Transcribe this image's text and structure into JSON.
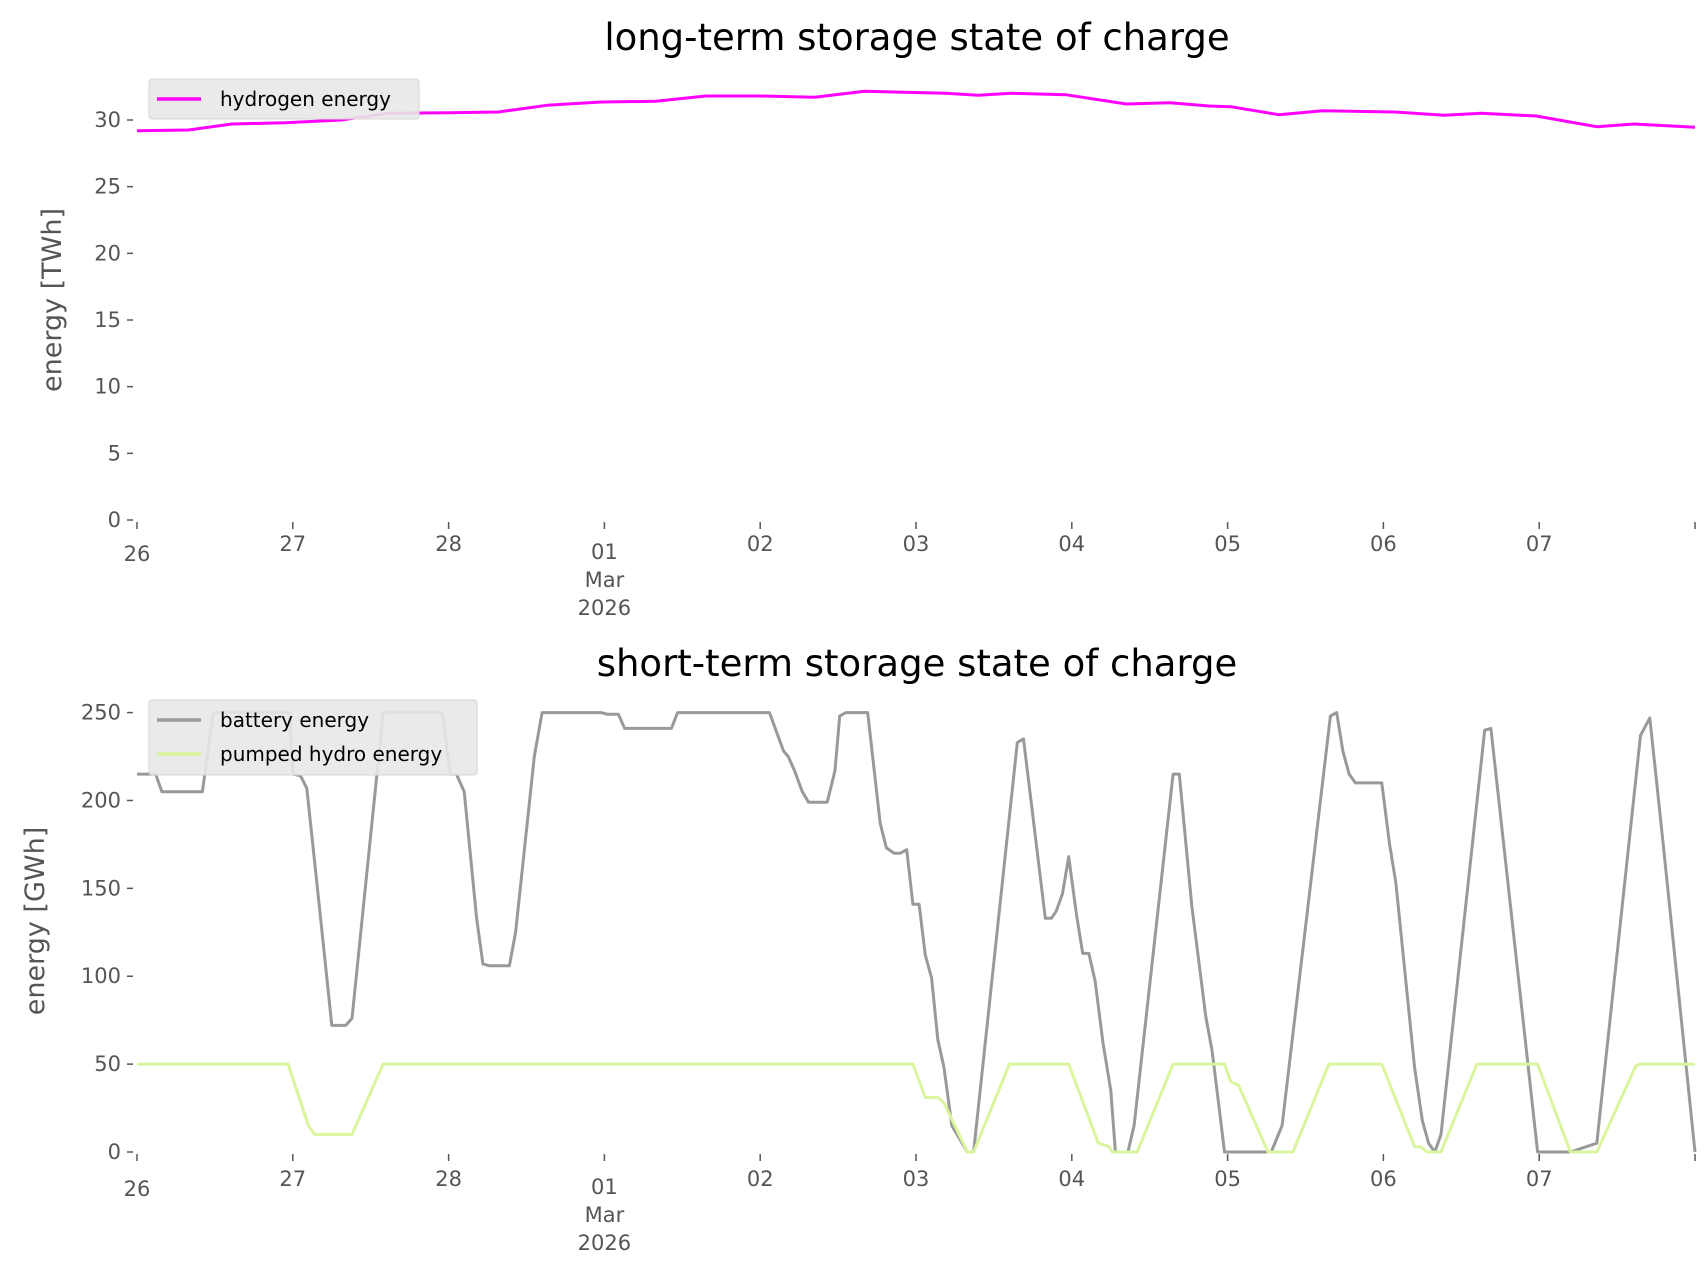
{
  "chart_data": [
    {
      "type": "line",
      "title": "long-term storage state of charge",
      "xlabel": "",
      "ylabel": "energy [TWh]",
      "ylim": [
        0,
        33
      ],
      "yticks": [
        0,
        5,
        10,
        15,
        20,
        25,
        30
      ],
      "xlim_days": [
        0,
        10
      ],
      "xtick_labels": [
        "26",
        "27",
        "28",
        "01",
        "02",
        "03",
        "04",
        "05",
        "06",
        "07"
      ],
      "xtick_sublabel": {
        "at": "01",
        "lines": [
          "Mar",
          "2026"
        ]
      },
      "x_unit": "days since 2026-02-26",
      "legend": "upper-left",
      "series": [
        {
          "name": "hydrogen energy",
          "color": "#ff00ff",
          "x": [
            0,
            0.33,
            0.61,
            0.95,
            1.31,
            1.61,
            2.0,
            2.32,
            2.63,
            2.98,
            3.33,
            3.65,
            4.0,
            4.35,
            4.67,
            5.19,
            5.4,
            5.61,
            5.96,
            6.35,
            6.63,
            6.88,
            7.02,
            7.33,
            7.61,
            8.07,
            8.39,
            8.63,
            8.98,
            9.37,
            9.61,
            10
          ],
          "y": [
            29.2,
            29.25,
            29.7,
            29.8,
            30.0,
            30.5,
            30.55,
            30.6,
            31.1,
            31.35,
            31.4,
            31.8,
            31.8,
            31.7,
            32.15,
            32.0,
            31.85,
            32.0,
            31.9,
            31.2,
            31.3,
            31.05,
            31.0,
            30.4,
            30.7,
            30.6,
            30.35,
            30.5,
            30.3,
            29.5,
            29.7,
            29.45
          ]
        }
      ]
    },
    {
      "type": "line",
      "title": "short-term storage state of charge",
      "xlabel": "",
      "ylabel": "energy [GWh]",
      "ylim": [
        0,
        260
      ],
      "yticks": [
        0,
        50,
        100,
        150,
        200,
        250
      ],
      "xlim_days": [
        0,
        10
      ],
      "xtick_labels": [
        "26",
        "27",
        "28",
        "01",
        "02",
        "03",
        "04",
        "05",
        "06",
        "07"
      ],
      "xtick_sublabel": {
        "at": "01",
        "lines": [
          "Mar",
          "2026"
        ]
      },
      "x_unit": "days since 2026-02-26",
      "legend": "upper-left",
      "series": [
        {
          "name": "battery energy",
          "color": "#999999",
          "x": [
            0,
            0.12,
            0.16,
            0.42,
            0.49,
            0.98,
            1.0,
            1.05,
            1.09,
            1.17,
            1.25,
            1.34,
            1.38,
            1.58,
            1.96,
            2.01,
            2.05,
            2.1,
            2.18,
            2.22,
            2.26,
            2.39,
            2.43,
            2.55,
            2.6,
            2.98,
            3.02,
            3.09,
            3.13,
            3.43,
            3.47,
            4.06,
            4.15,
            4.18,
            4.22,
            4.27,
            4.31,
            4.43,
            4.48,
            4.51,
            4.55,
            4.69,
            4.77,
            4.81,
            4.86,
            4.9,
            4.94,
            4.98,
            5.02,
            5.06,
            5.1,
            5.14,
            5.18,
            5.23,
            5.33,
            5.37,
            5.65,
            5.69,
            5.83,
            5.87,
            5.9,
            5.94,
            5.98,
            6.03,
            6.07,
            6.11,
            6.15,
            6.2,
            6.25,
            6.28,
            6.36,
            6.4,
            6.65,
            6.69,
            6.77,
            6.86,
            6.9,
            6.95,
            6.98,
            7.28,
            7.35,
            7.66,
            7.7,
            7.74,
            7.78,
            7.82,
            7.99,
            8.04,
            8.08,
            8.2,
            8.25,
            8.29,
            8.33,
            8.37,
            8.65,
            8.69,
            8.99,
            9.2,
            9.37,
            9.65,
            9.71,
            9.79,
            10
          ],
          "y": [
            215,
            215,
            205,
            205,
            250,
            250,
            215,
            214,
            207,
            140,
            72,
            72,
            76,
            250,
            250,
            215,
            215,
            205,
            133,
            107,
            106,
            106,
            125,
            225,
            250,
            250,
            249,
            249,
            241,
            241,
            250,
            250,
            228,
            225,
            217,
            205,
            199,
            199,
            217,
            248,
            250,
            250,
            187,
            173,
            170,
            170,
            172,
            141,
            141,
            112,
            99,
            64,
            48,
            15,
            0,
            0,
            233,
            235,
            133,
            133,
            137,
            147,
            168,
            135,
            113,
            113,
            97,
            62,
            35,
            0,
            0,
            15,
            215,
            215,
            140,
            77,
            58,
            22,
            0,
            0,
            15,
            248,
            250,
            228,
            215,
            210,
            210,
            175,
            153,
            48,
            18,
            5,
            0,
            10,
            240,
            241,
            0,
            0,
            5,
            237,
            247,
            180,
            0
          ]
        },
        {
          "name": "pumped hydro energy",
          "color": "#d9f59d",
          "x": [
            0,
            0.97,
            1.1,
            1.14,
            1.38,
            1.58,
            4.98,
            5.06,
            5.14,
            5.18,
            5.33,
            5.37,
            5.6,
            5.98,
            6.17,
            6.24,
            6.26,
            6.42,
            6.65,
            6.98,
            7.02,
            7.07,
            7.23,
            7.26,
            7.42,
            7.65,
            7.99,
            8.2,
            8.24,
            8.28,
            8.37,
            8.6,
            8.99,
            9.2,
            9.37,
            9.62,
            9.65,
            10
          ],
          "y": [
            50,
            50,
            15,
            10,
            10,
            50,
            50,
            31,
            31,
            28,
            0,
            0,
            50,
            50,
            5,
            3,
            0,
            0,
            50,
            50,
            40,
            38,
            6,
            0,
            0,
            50,
            50,
            3,
            3,
            0,
            0,
            50,
            50,
            0,
            0,
            49,
            50,
            50
          ]
        }
      ]
    }
  ]
}
